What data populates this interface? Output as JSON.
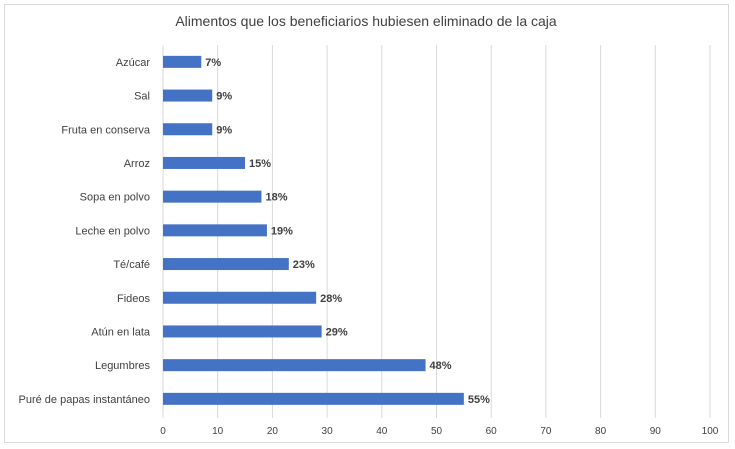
{
  "chart_data": {
    "type": "bar",
    "orientation": "horizontal",
    "title": "Alimentos que los beneficiarios hubiesen eliminado de la caja",
    "categories": [
      "Azúcar",
      "Sal",
      "Fruta en conserva",
      "Arroz",
      "Sopa en polvo",
      "Leche en polvo",
      "Té/café",
      "Fideos",
      "Atún en lata",
      "Legumbres",
      "Puré de papas instantáneo"
    ],
    "values": [
      7,
      9,
      9,
      15,
      18,
      19,
      23,
      28,
      29,
      48,
      55
    ],
    "data_labels": [
      "7%",
      "9%",
      "9%",
      "15%",
      "18%",
      "19%",
      "23%",
      "28%",
      "29%",
      "48%",
      "55%"
    ],
    "xlim": [
      0,
      100
    ],
    "xticks": [
      "0",
      "10",
      "20",
      "30",
      "40",
      "50",
      "60",
      "70",
      "80",
      "90",
      "100"
    ],
    "grid": true,
    "legend": "none",
    "bar_color": "#4472c4"
  }
}
